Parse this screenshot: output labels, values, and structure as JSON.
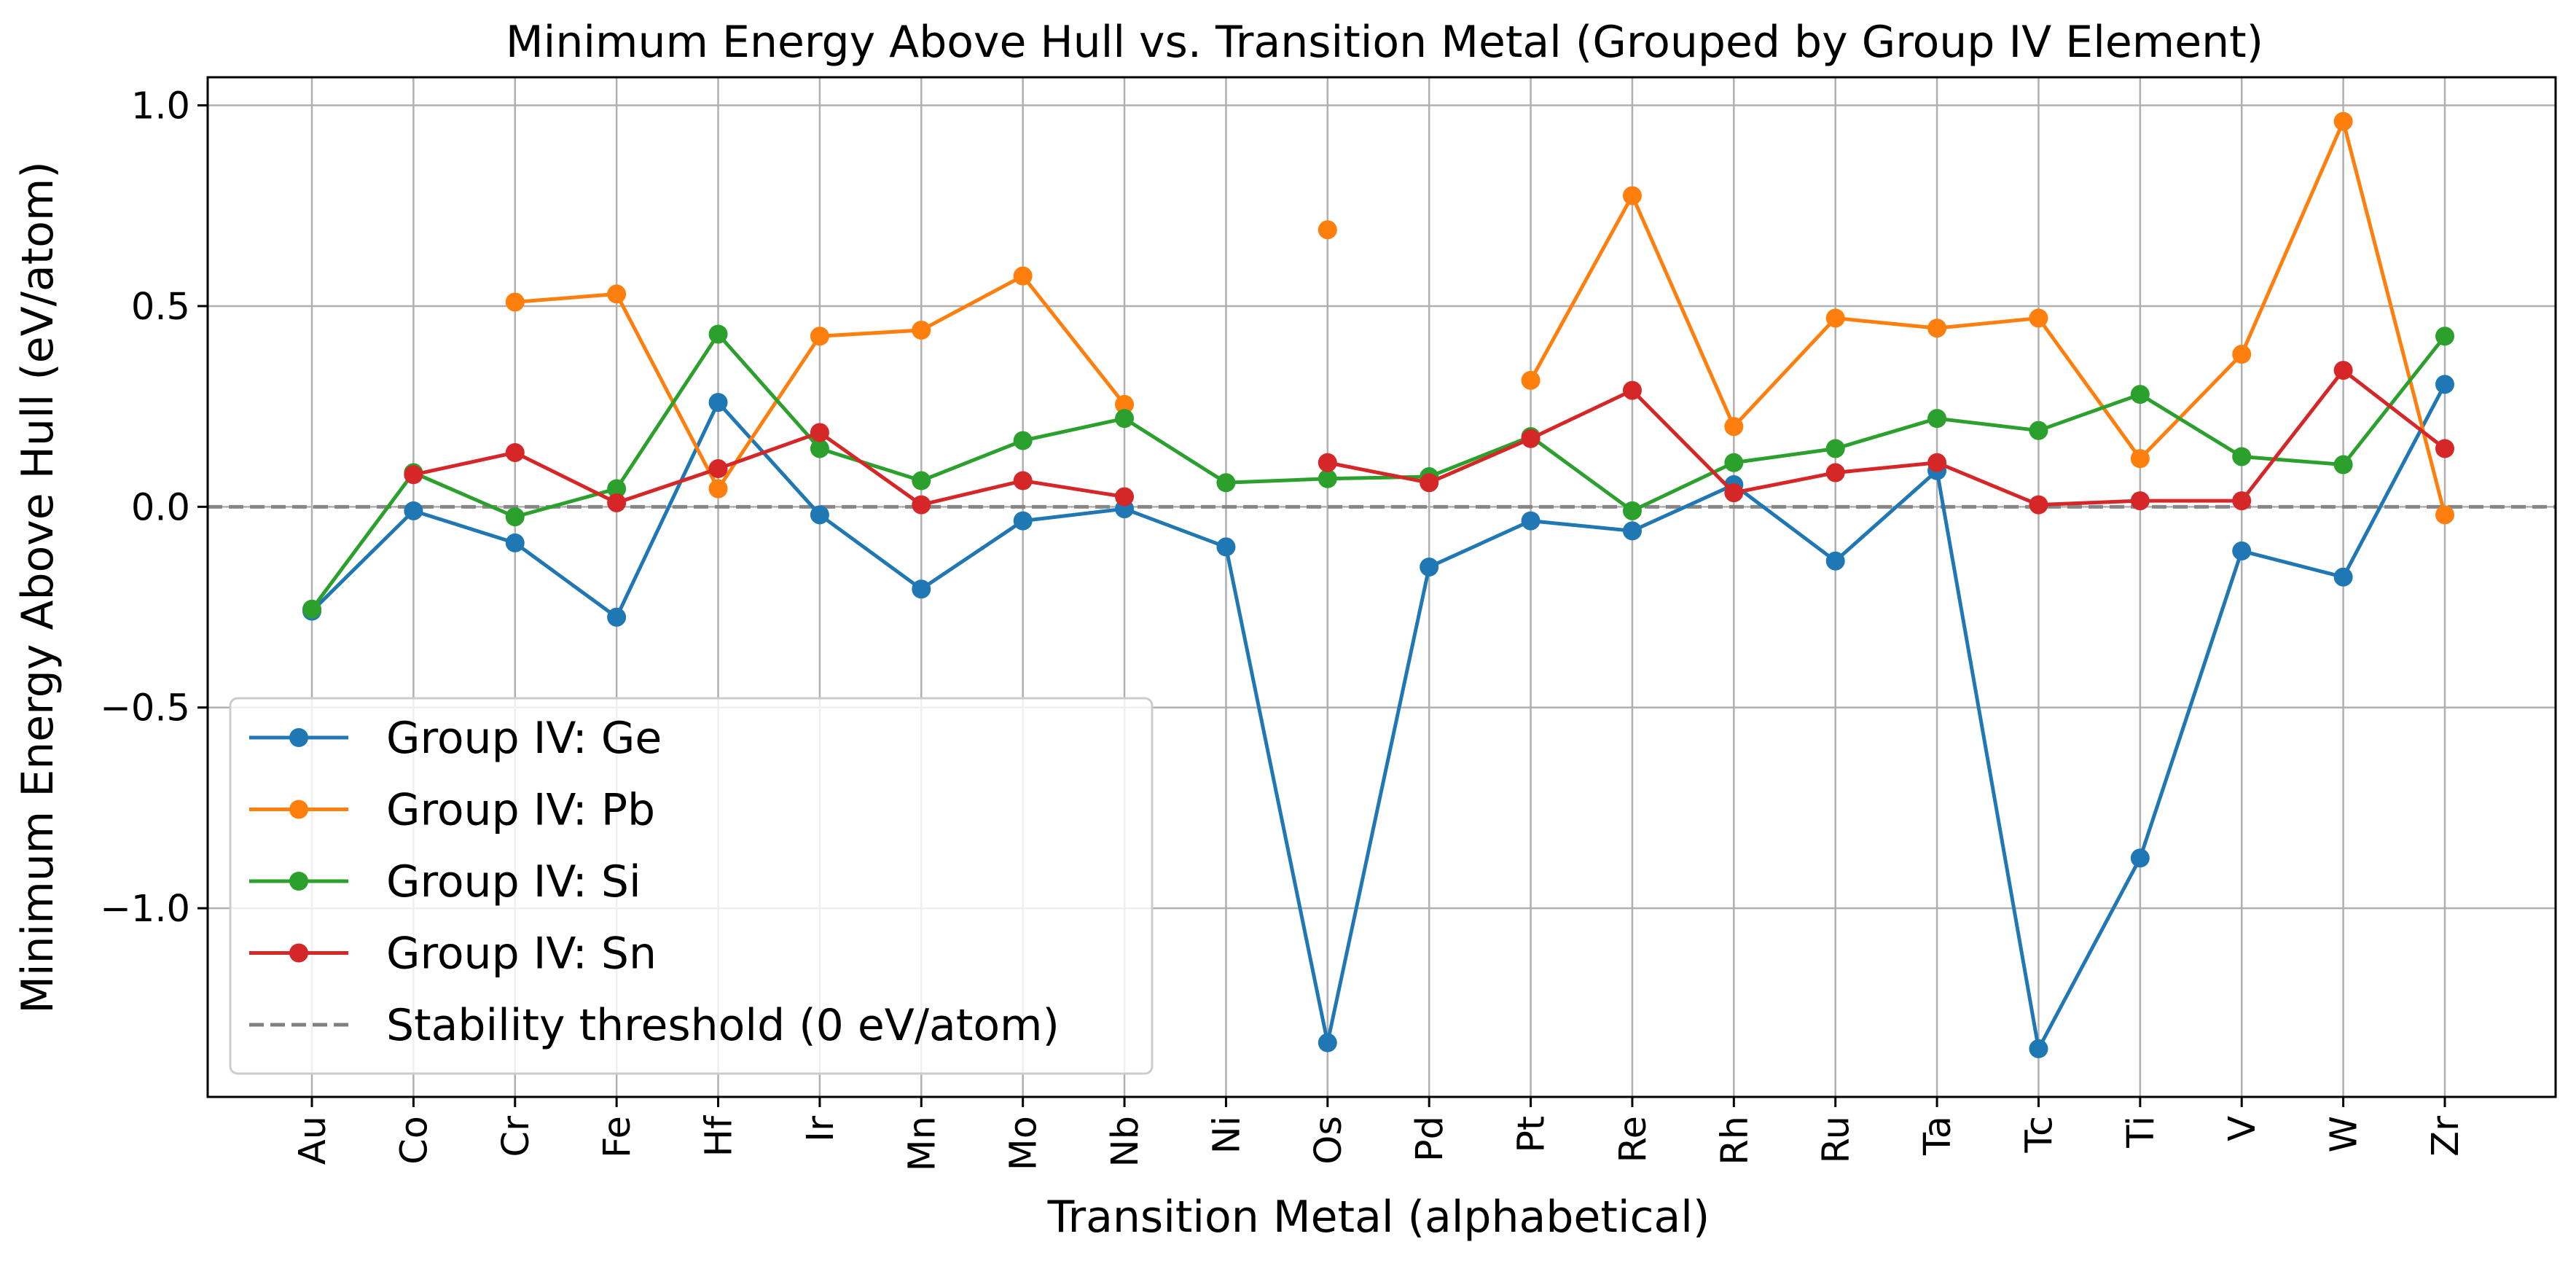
{
  "chart_data": {
    "type": "line",
    "title": "Minimum Energy Above Hull vs. Transition Metal (Grouped by Group IV Element)",
    "xlabel": "Transition Metal (alphabetical)",
    "ylabel": "Minimum Energy Above Hull (eV/atom)",
    "categories": [
      "Au",
      "Co",
      "Cr",
      "Fe",
      "Hf",
      "Ir",
      "Mn",
      "Mo",
      "Nb",
      "Ni",
      "Os",
      "Pd",
      "Pt",
      "Re",
      "Rh",
      "Ru",
      "Ta",
      "Tc",
      "Ti",
      "V",
      "W",
      "Zr"
    ],
    "ylim": [
      -1.47,
      1.07
    ],
    "yticks": [
      1.0,
      0.5,
      0.0,
      -0.5,
      -1.0
    ],
    "ytick_labels": [
      "1.0",
      "0.5",
      "0.0",
      "−0.5",
      "−1.0"
    ],
    "grid": true,
    "legend_position": "lower-left",
    "series": [
      {
        "name": "Group IV: Ge",
        "color": "#1f77b4",
        "values": [
          -0.26,
          -0.01,
          -0.09,
          -0.275,
          0.26,
          -0.02,
          -0.205,
          -0.035,
          -0.005,
          -0.1,
          -1.335,
          -0.15,
          -0.035,
          -0.06,
          0.055,
          -0.135,
          0.09,
          -1.35,
          -0.875,
          -0.11,
          -0.175,
          0.305
        ]
      },
      {
        "name": "Group IV: Pb",
        "color": "#ff7f0e",
        "values": [
          null,
          null,
          0.51,
          0.53,
          0.045,
          0.425,
          0.44,
          0.575,
          0.255,
          null,
          0.69,
          null,
          0.315,
          0.775,
          0.2,
          0.47,
          0.445,
          0.47,
          0.12,
          0.38,
          0.96,
          -0.02
        ]
      },
      {
        "name": "Group IV: Si",
        "color": "#2ca02c",
        "values": [
          -0.255,
          0.085,
          -0.025,
          0.045,
          0.43,
          0.145,
          0.065,
          0.165,
          0.22,
          0.06,
          0.07,
          0.075,
          0.175,
          -0.01,
          0.11,
          0.145,
          0.22,
          0.19,
          0.28,
          0.125,
          0.105,
          0.425
        ]
      },
      {
        "name": "Group IV: Sn",
        "color": "#d62728",
        "values": [
          null,
          0.08,
          0.135,
          0.01,
          0.095,
          0.185,
          0.005,
          0.065,
          0.025,
          null,
          0.11,
          0.06,
          0.17,
          0.29,
          0.035,
          0.085,
          0.11,
          0.005,
          0.015,
          0.015,
          0.34,
          0.145
        ]
      }
    ],
    "reference_line": {
      "y": 0.0,
      "label": "Stability threshold (0 eV/atom)",
      "color": "#808080",
      "style": "dashed"
    }
  }
}
